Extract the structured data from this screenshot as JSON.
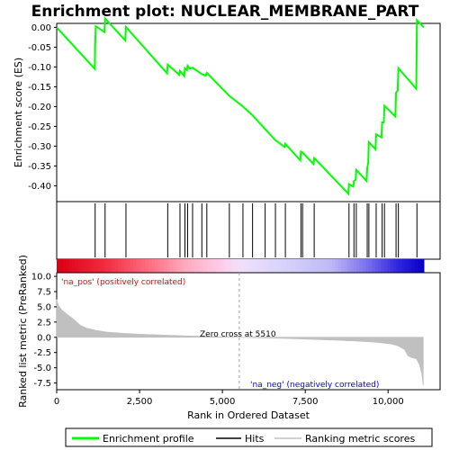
{
  "chart_data": {
    "type": "line",
    "title": "Enrichment plot: NUCLEAR_MEMBRANE_PART",
    "xlabel": "Rank in Ordered Dataset",
    "top_panel": {
      "ylabel": "Enrichment score (ES)",
      "ylim": [
        -0.44,
        0.01
      ],
      "yticks": [
        "0.00",
        "-0.05",
        "-0.10",
        "-0.15",
        "-0.20",
        "-0.25",
        "-0.30",
        "-0.35",
        "-0.40"
      ],
      "ytick_values": [
        0.0,
        -0.05,
        -0.1,
        -0.15,
        -0.2,
        -0.25,
        -0.3,
        -0.35,
        -0.4
      ],
      "es_profile": [
        [
          0,
          0.0
        ],
        [
          1150,
          -0.105
        ],
        [
          1160,
          -0.045
        ],
        [
          1180,
          0.003
        ],
        [
          1440,
          -0.012
        ],
        [
          1460,
          0.022
        ],
        [
          2070,
          -0.033
        ],
        [
          2090,
          0.001
        ],
        [
          3330,
          -0.116
        ],
        [
          3350,
          -0.094
        ],
        [
          3700,
          -0.12
        ],
        [
          3720,
          -0.11
        ],
        [
          3850,
          -0.123
        ],
        [
          3870,
          -0.103
        ],
        [
          3930,
          -0.108
        ],
        [
          3950,
          -0.097
        ],
        [
          4020,
          -0.104
        ],
        [
          4100,
          -0.102
        ],
        [
          4380,
          -0.118
        ],
        [
          4500,
          -0.122
        ],
        [
          4530,
          -0.115
        ],
        [
          5210,
          -0.173
        ],
        [
          5620,
          -0.2
        ],
        [
          5910,
          -0.222
        ],
        [
          6290,
          -0.257
        ],
        [
          6600,
          -0.285
        ],
        [
          6880,
          -0.302
        ],
        [
          6900,
          -0.294
        ],
        [
          7350,
          -0.336
        ],
        [
          7370,
          -0.314
        ],
        [
          7420,
          -0.316
        ],
        [
          7750,
          -0.345
        ],
        [
          7770,
          -0.33
        ],
        [
          8800,
          -0.42
        ],
        [
          8820,
          -0.396
        ],
        [
          8950,
          -0.402
        ],
        [
          8970,
          -0.388
        ],
        [
          9020,
          -0.385
        ],
        [
          9040,
          -0.36
        ],
        [
          9350,
          -0.388
        ],
        [
          9370,
          -0.356
        ],
        [
          9400,
          -0.342
        ],
        [
          9420,
          -0.29
        ],
        [
          9620,
          -0.308
        ],
        [
          9640,
          -0.27
        ],
        [
          9800,
          -0.278
        ],
        [
          9820,
          -0.24
        ],
        [
          9870,
          -0.24
        ],
        [
          9890,
          -0.198
        ],
        [
          10220,
          -0.225
        ],
        [
          10240,
          -0.165
        ],
        [
          10290,
          -0.16
        ],
        [
          10310,
          -0.103
        ],
        [
          10850,
          -0.155
        ],
        [
          10870,
          0.018
        ],
        [
          11080,
          0.0
        ]
      ],
      "hits": [
        1160,
        1460,
        2090,
        3350,
        3720,
        3870,
        3950,
        4100,
        4380,
        4530,
        5210,
        5620,
        5910,
        6290,
        6600,
        6900,
        7370,
        7420,
        7770,
        8820,
        8970,
        9040,
        9370,
        9420,
        9640,
        9820,
        9890,
        10240,
        10310,
        10870
      ]
    },
    "bottom_panel": {
      "ylabel": "Ranked list metric (PreRanked)",
      "ylim": [
        -8.6,
        10.6
      ],
      "yticks": [
        "10.0",
        "7.5",
        "5.0",
        "2.5",
        "0.0",
        "-2.5",
        "-5.0",
        "-7.5"
      ],
      "ytick_values": [
        10.0,
        7.5,
        5.0,
        2.5,
        0.0,
        -2.5,
        -5.0,
        -7.5
      ],
      "metric_curve": [
        [
          0,
          6.2
        ],
        [
          50,
          5.2
        ],
        [
          150,
          4.5
        ],
        [
          300,
          3.8
        ],
        [
          500,
          3.0
        ],
        [
          700,
          2.0
        ],
        [
          900,
          1.5
        ],
        [
          1200,
          1.1
        ],
        [
          1500,
          0.85
        ],
        [
          2000,
          0.65
        ],
        [
          2500,
          0.5
        ],
        [
          3000,
          0.4
        ],
        [
          3500,
          0.3
        ],
        [
          4000,
          0.2
        ],
        [
          4500,
          0.12
        ],
        [
          5000,
          0.05
        ],
        [
          5510,
          0.0
        ],
        [
          6000,
          -0.06
        ],
        [
          6500,
          -0.12
        ],
        [
          7000,
          -0.2
        ],
        [
          7500,
          -0.28
        ],
        [
          8000,
          -0.38
        ],
        [
          8500,
          -0.48
        ],
        [
          9000,
          -0.6
        ],
        [
          9500,
          -0.75
        ],
        [
          9800,
          -0.9
        ],
        [
          10100,
          -1.1
        ],
        [
          10300,
          -1.4
        ],
        [
          10500,
          -2.0
        ],
        [
          10600,
          -3.0
        ],
        [
          10700,
          -3.3
        ],
        [
          10850,
          -3.5
        ],
        [
          10950,
          -4.5
        ],
        [
          11020,
          -6.0
        ],
        [
          11060,
          -7.9
        ]
      ],
      "zero_cross_label": "Zero cross at 5510",
      "zero_cross": 5510,
      "pos_label": "'na_pos' (positively correlated)",
      "neg_label": "'na_neg' (negatively correlated)"
    },
    "xlim": [
      0,
      11080
    ],
    "xticks": [
      "0",
      "2,500",
      "5,000",
      "7,500",
      "10,000"
    ],
    "xtick_values": [
      0,
      2500,
      5000,
      7500,
      10000
    ],
    "legend": {
      "position": "bottom",
      "entries": [
        "Enrichment profile",
        "Hits",
        "Ranking metric scores"
      ]
    },
    "colors": {
      "profile": "#00ff00",
      "hits": "#000000",
      "metric": "#c0c0c0",
      "pos_text": "#ff0000",
      "neg_text": "#0000ff",
      "zero_line": "#a0a0a0"
    }
  }
}
